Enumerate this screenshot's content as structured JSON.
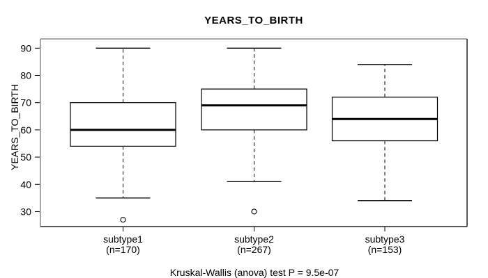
{
  "chart_data": {
    "type": "boxplot",
    "title": "YEARS_TO_BIRTH",
    "ylabel": "YEARS_TO_BIRTH",
    "xlabel": "",
    "annotation": "Kruskal-Wallis (anova) test P = 9.5e-07",
    "yticks": [
      30,
      40,
      50,
      60,
      70,
      80,
      90
    ],
    "ylim": [
      24.5,
      93.4
    ],
    "grid": false,
    "legend": false,
    "groups": [
      {
        "label": "subtype1",
        "sublabel": "(n=170)",
        "whisker_low": 35,
        "q1": 54,
        "median": 60,
        "q3": 70,
        "whisker_high": 90,
        "outliers": [
          27
        ]
      },
      {
        "label": "subtype2",
        "sublabel": "(n=267)",
        "whisker_low": 41,
        "q1": 60,
        "median": 69,
        "q3": 75,
        "whisker_high": 90,
        "outliers": [
          30
        ]
      },
      {
        "label": "subtype3",
        "sublabel": "(n=153)",
        "whisker_low": 34,
        "q1": 56,
        "median": 64,
        "q3": 72,
        "whisker_high": 84,
        "outliers": []
      }
    ],
    "colors": {
      "stroke": "#000000",
      "median": "#000000",
      "box_fill": "#ffffff",
      "frame_light": "#8a8a8a",
      "frame_dark": "#222222",
      "background": "#ffffff"
    }
  }
}
